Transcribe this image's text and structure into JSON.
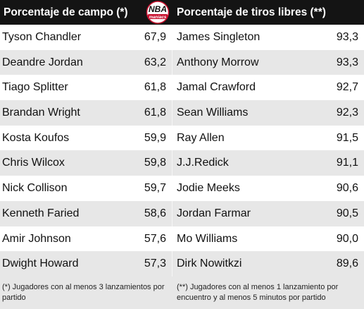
{
  "header": {
    "left_title": "Porcentaje de campo (*)",
    "right_title": "Porcentaje de tiros libres (**)",
    "logo_text_top": "NBA",
    "logo_text_bottom": "maniacs"
  },
  "rows": [
    {
      "field_player": "Tyson Chandler",
      "field_pct": "67,9",
      "ft_player": "James Singleton",
      "ft_pct": "93,3"
    },
    {
      "field_player": "Deandre Jordan",
      "field_pct": "63,2",
      "ft_player": "Anthony Morrow",
      "ft_pct": "93,3"
    },
    {
      "field_player": "Tiago Splitter",
      "field_pct": "61,8",
      "ft_player": "Jamal Crawford",
      "ft_pct": "92,7"
    },
    {
      "field_player": "Brandan Wright",
      "field_pct": "61,8",
      "ft_player": "Sean Williams",
      "ft_pct": "92,3"
    },
    {
      "field_player": "Kosta Koufos",
      "field_pct": "59,9",
      "ft_player": "Ray Allen",
      "ft_pct": "91,5"
    },
    {
      "field_player": "Chris Wilcox",
      "field_pct": "59,8",
      "ft_player": "J.J.Redick",
      "ft_pct": "91,1"
    },
    {
      "field_player": "Nick Collison",
      "field_pct": "59,7",
      "ft_player": "Jodie Meeks",
      "ft_pct": "90,6"
    },
    {
      "field_player": "Kenneth Faried",
      "field_pct": "58,6",
      "ft_player": "Jordan Farmar",
      "ft_pct": "90,5"
    },
    {
      "field_player": "Amir Johnson",
      "field_pct": "57,6",
      "ft_player": "Mo Williams",
      "ft_pct": "90,0"
    },
    {
      "field_player": "Dwight Howard",
      "field_pct": "57,3",
      "ft_player": "Dirk Nowitkzi",
      "ft_pct": "89,6"
    }
  ],
  "footer": {
    "note_field": "(*) Jugadores con al menos 3 lanzamientos por partido",
    "note_ft": "(**) Jugadores con al menos 1 lanzamiento por encuentro y al menos 5 minutos por partido"
  },
  "colors": {
    "header_bg": "#141414",
    "row_alt_bg": "#e7e7e7",
    "logo_red": "#c8102e"
  }
}
